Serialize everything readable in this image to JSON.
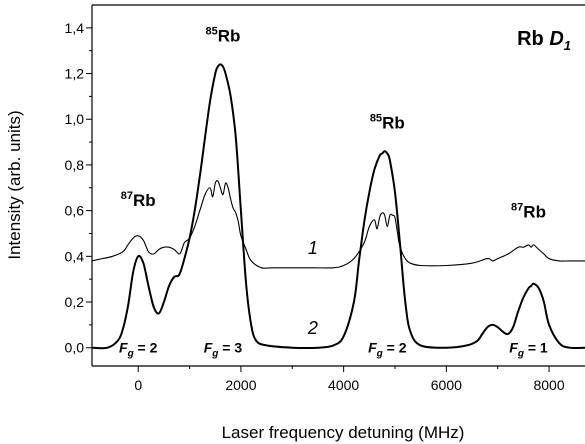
{
  "chart_data": {
    "type": "line",
    "title": "Rb D1",
    "title_parts": {
      "main": "Rb ",
      "letter": "D",
      "sub": "1"
    },
    "xlabel": "Laser frequency detuning (MHz)",
    "ylabel": "Intensity (arb. units)",
    "xlim": [
      -900,
      8700
    ],
    "ylim": [
      -0.08,
      1.5
    ],
    "xticks": [
      0,
      2000,
      4000,
      6000,
      8000
    ],
    "xtick_labels": [
      "0",
      "2000",
      "4000",
      "6000",
      "8000"
    ],
    "yticks": [
      0.0,
      0.2,
      0.4,
      0.6,
      0.8,
      1.0,
      1.2,
      1.4
    ],
    "ytick_labels": [
      "0,0",
      "0,2",
      "0,4",
      "0,6",
      "0,8",
      "1,0",
      "1,2",
      "1,4"
    ],
    "grid": false,
    "series": [
      {
        "name": "1",
        "x": [
          -900,
          -700,
          -500,
          -300,
          -200,
          -100,
          0,
          100,
          200,
          300,
          400,
          500,
          600,
          700,
          800,
          850,
          900,
          1000,
          1100,
          1200,
          1300,
          1400,
          1450,
          1500,
          1550,
          1600,
          1650,
          1700,
          1750,
          1800,
          1850,
          1900,
          1950,
          2000,
          2100,
          2200,
          2400,
          2600,
          3000,
          3400,
          3800,
          4000,
          4200,
          4400,
          4500,
          4600,
          4650,
          4700,
          4750,
          4800,
          4850,
          4900,
          4950,
          5000,
          5050,
          5100,
          5200,
          5300,
          5500,
          6000,
          6500,
          6800,
          6900,
          7000,
          7200,
          7400,
          7500,
          7600,
          7650,
          7700,
          7800,
          7900,
          8000,
          8200,
          8400,
          8700
        ],
        "y": [
          0.38,
          0.39,
          0.4,
          0.42,
          0.45,
          0.48,
          0.49,
          0.47,
          0.42,
          0.41,
          0.43,
          0.44,
          0.44,
          0.43,
          0.41,
          0.43,
          0.46,
          0.48,
          0.53,
          0.6,
          0.67,
          0.7,
          0.66,
          0.72,
          0.73,
          0.7,
          0.67,
          0.72,
          0.7,
          0.65,
          0.61,
          0.59,
          0.55,
          0.49,
          0.43,
          0.38,
          0.35,
          0.35,
          0.35,
          0.35,
          0.35,
          0.36,
          0.39,
          0.46,
          0.53,
          0.56,
          0.52,
          0.57,
          0.59,
          0.58,
          0.53,
          0.58,
          0.58,
          0.57,
          0.5,
          0.44,
          0.39,
          0.37,
          0.36,
          0.36,
          0.37,
          0.39,
          0.38,
          0.39,
          0.41,
          0.44,
          0.44,
          0.45,
          0.44,
          0.45,
          0.43,
          0.41,
          0.39,
          0.38,
          0.38,
          0.38
        ]
      },
      {
        "name": "2",
        "x": [
          -900,
          -600,
          -400,
          -300,
          -200,
          -100,
          0,
          100,
          200,
          300,
          400,
          500,
          600,
          700,
          800,
          900,
          1000,
          1100,
          1200,
          1300,
          1400,
          1500,
          1550,
          1600,
          1650,
          1700,
          1800,
          1900,
          2000,
          2100,
          2200,
          2300,
          2500,
          3000,
          3500,
          3800,
          4000,
          4200,
          4300,
          4400,
          4500,
          4600,
          4700,
          4750,
          4800,
          4850,
          4900,
          5000,
          5100,
          5200,
          5300,
          5500,
          6000,
          6400,
          6600,
          6700,
          6800,
          6900,
          7000,
          7100,
          7200,
          7300,
          7400,
          7500,
          7600,
          7650,
          7700,
          7800,
          7900,
          8000,
          8200,
          8400,
          8700
        ],
        "y": [
          0.0,
          0.0,
          0.03,
          0.08,
          0.18,
          0.33,
          0.4,
          0.37,
          0.27,
          0.18,
          0.15,
          0.2,
          0.27,
          0.31,
          0.32,
          0.39,
          0.48,
          0.6,
          0.75,
          0.92,
          1.08,
          1.2,
          1.23,
          1.24,
          1.23,
          1.2,
          1.1,
          0.92,
          0.6,
          0.28,
          0.1,
          0.03,
          0.01,
          0.0,
          0.0,
          0.01,
          0.05,
          0.2,
          0.38,
          0.55,
          0.68,
          0.78,
          0.84,
          0.85,
          0.86,
          0.85,
          0.82,
          0.68,
          0.45,
          0.2,
          0.07,
          0.01,
          0.0,
          0.01,
          0.03,
          0.06,
          0.09,
          0.1,
          0.09,
          0.07,
          0.06,
          0.09,
          0.16,
          0.22,
          0.26,
          0.27,
          0.28,
          0.26,
          0.2,
          0.1,
          0.02,
          0.0,
          0.0
        ]
      }
    ],
    "annotations": [
      {
        "id": "rb87-left",
        "iso": "87",
        "el": "Rb",
        "x": 0,
        "y": 0.62
      },
      {
        "id": "rb85-left",
        "iso": "85",
        "el": "Rb",
        "x": 1650,
        "y": 1.34
      },
      {
        "id": "rb85-right",
        "iso": "85",
        "el": "Rb",
        "x": 4850,
        "y": 0.96
      },
      {
        "id": "rb87-right",
        "iso": "87",
        "el": "Rb",
        "x": 7600,
        "y": 0.57
      }
    ],
    "curve_labels": [
      {
        "id": "1",
        "text": "1",
        "x": 3400,
        "y": 0.41
      },
      {
        "id": "2",
        "text": "2",
        "x": 3400,
        "y": 0.06
      }
    ],
    "fg_labels": [
      {
        "id": "fg-2-left",
        "letter": "F",
        "sub": "g",
        "rest": " = 2",
        "x": 0,
        "y": -0.02
      },
      {
        "id": "fg-3",
        "letter": "F",
        "sub": "g",
        "rest": " = 3",
        "x": 1650,
        "y": -0.02
      },
      {
        "id": "fg-2-right",
        "letter": "F",
        "sub": "g",
        "rest": " = 2",
        "x": 4850,
        "y": -0.02
      },
      {
        "id": "fg-1",
        "letter": "F",
        "sub": "g",
        "rest": " = 1",
        "x": 7600,
        "y": -0.02
      }
    ]
  }
}
